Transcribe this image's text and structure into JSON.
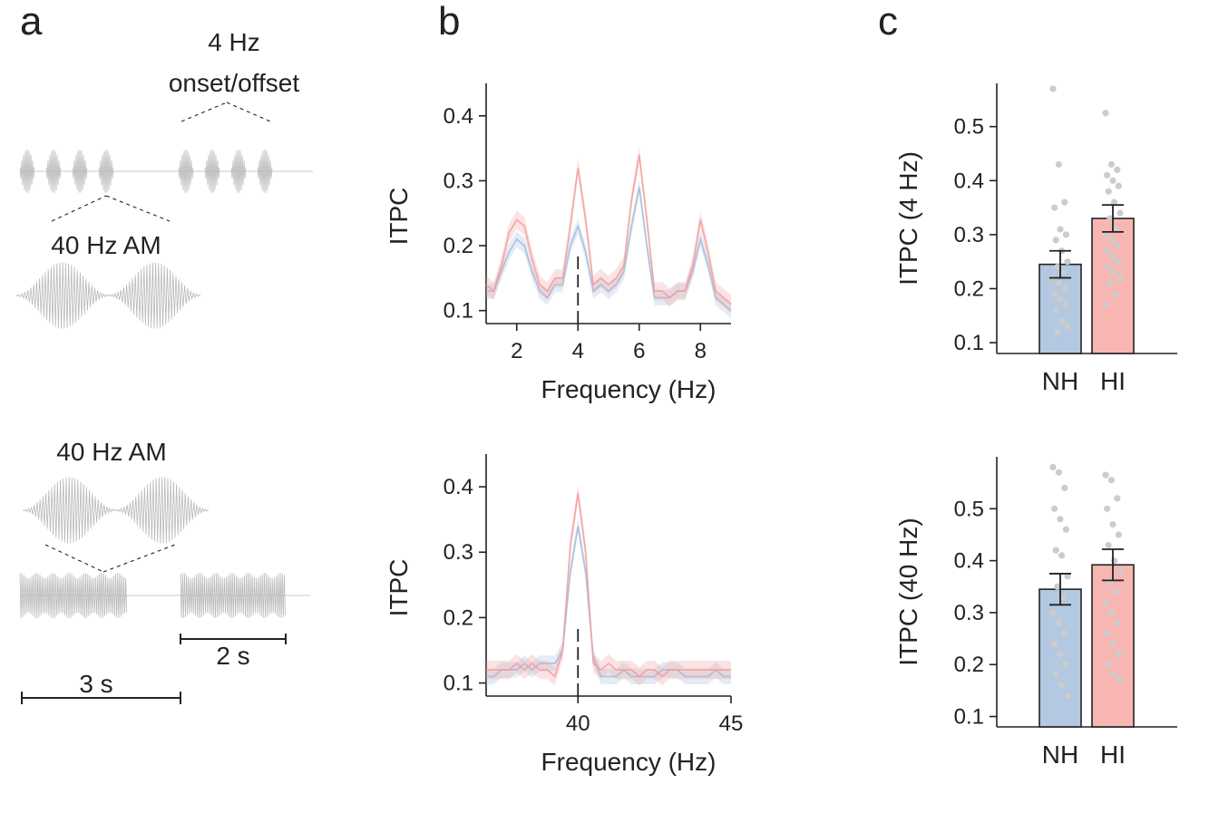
{
  "panels": {
    "a": "a",
    "b": "b",
    "c": "c"
  },
  "schematic": {
    "top_label_line1": "4 Hz",
    "top_label_line2": "onset/offset",
    "am_label_top": "40 Hz AM",
    "am_label_bottom": "40 Hz AM",
    "scale_2s": "2 s",
    "scale_3s": "3 s"
  },
  "colors": {
    "NH": "#9fbbdc",
    "HI": "#f29c99",
    "NH_bar": "#b3c8e1",
    "HI_bar": "#f8b6b2",
    "dots": "#cccccc",
    "waveform": "#b8b8b8"
  },
  "chart_data": [
    {
      "id": "b-top",
      "type": "line",
      "xlabel": "Frequency (Hz)",
      "ylabel": "ITPC",
      "xlim": [
        1,
        9
      ],
      "ylim": [
        0.08,
        0.45
      ],
      "xticks": [
        2,
        4,
        6,
        8
      ],
      "yticks": [
        0.1,
        0.2,
        0.3,
        0.4
      ],
      "marker_x": 4,
      "x": [
        1,
        1.25,
        1.5,
        1.75,
        2,
        2.25,
        2.5,
        2.75,
        3,
        3.25,
        3.5,
        3.75,
        4,
        4.25,
        4.5,
        4.75,
        5,
        5.25,
        5.5,
        5.75,
        6,
        6.25,
        6.5,
        6.75,
        7,
        7.25,
        7.5,
        7.75,
        8,
        8.25,
        8.5,
        8.75,
        9
      ],
      "series": [
        {
          "name": "NH",
          "values": [
            0.13,
            0.13,
            0.16,
            0.19,
            0.21,
            0.2,
            0.16,
            0.13,
            0.12,
            0.14,
            0.14,
            0.2,
            0.23,
            0.19,
            0.13,
            0.14,
            0.13,
            0.14,
            0.16,
            0.23,
            0.29,
            0.2,
            0.12,
            0.12,
            0.12,
            0.13,
            0.13,
            0.16,
            0.21,
            0.17,
            0.12,
            0.11,
            0.1
          ],
          "band": 0.012
        },
        {
          "name": "HI",
          "values": [
            0.14,
            0.13,
            0.17,
            0.22,
            0.24,
            0.23,
            0.18,
            0.14,
            0.13,
            0.15,
            0.15,
            0.23,
            0.32,
            0.24,
            0.14,
            0.15,
            0.14,
            0.15,
            0.17,
            0.27,
            0.34,
            0.24,
            0.13,
            0.13,
            0.12,
            0.13,
            0.13,
            0.17,
            0.24,
            0.19,
            0.13,
            0.12,
            0.11
          ],
          "band": 0.014
        }
      ]
    },
    {
      "id": "b-bottom",
      "type": "line",
      "xlabel": "Frequency (Hz)",
      "ylabel": "ITPC",
      "xlim": [
        37,
        45
      ],
      "ylim": [
        0.08,
        0.45
      ],
      "xticks": [
        40,
        45
      ],
      "yticks": [
        0.1,
        0.2,
        0.3,
        0.4
      ],
      "marker_x": 40,
      "x": [
        37,
        37.25,
        37.5,
        37.75,
        38,
        38.25,
        38.5,
        38.75,
        39,
        39.25,
        39.5,
        39.75,
        40,
        40.25,
        40.5,
        40.75,
        41,
        41.25,
        41.5,
        41.75,
        42,
        42.25,
        42.5,
        42.75,
        43,
        43.25,
        43.5,
        43.75,
        44,
        44.25,
        44.5,
        44.75,
        45
      ],
      "series": [
        {
          "name": "NH",
          "values": [
            0.11,
            0.11,
            0.12,
            0.12,
            0.12,
            0.13,
            0.12,
            0.13,
            0.13,
            0.13,
            0.15,
            0.27,
            0.34,
            0.27,
            0.14,
            0.11,
            0.11,
            0.11,
            0.12,
            0.11,
            0.11,
            0.11,
            0.11,
            0.12,
            0.12,
            0.12,
            0.11,
            0.11,
            0.11,
            0.11,
            0.12,
            0.11,
            0.11
          ],
          "band": 0.012
        },
        {
          "name": "HI",
          "values": [
            0.12,
            0.12,
            0.12,
            0.12,
            0.13,
            0.12,
            0.13,
            0.12,
            0.12,
            0.11,
            0.15,
            0.31,
            0.39,
            0.3,
            0.13,
            0.12,
            0.13,
            0.12,
            0.12,
            0.12,
            0.11,
            0.12,
            0.12,
            0.11,
            0.12,
            0.12,
            0.12,
            0.12,
            0.12,
            0.12,
            0.12,
            0.12,
            0.12
          ],
          "band": 0.014
        }
      ]
    },
    {
      "id": "c-top",
      "type": "bar",
      "ylabel": "ITPC (4 Hz)",
      "ylim": [
        0.08,
        0.58
      ],
      "yticks": [
        0.1,
        0.2,
        0.3,
        0.4,
        0.5
      ],
      "categories": [
        "NH",
        "HI"
      ],
      "values": [
        0.245,
        0.33
      ],
      "errors": [
        0.025,
        0.025
      ],
      "points": [
        [
          0.57,
          0.43,
          0.36,
          0.35,
          0.31,
          0.3,
          0.29,
          0.27,
          0.25,
          0.24,
          0.23,
          0.22,
          0.21,
          0.2,
          0.19,
          0.18,
          0.17,
          0.16,
          0.14,
          0.13,
          0.12
        ],
        [
          0.525,
          0.43,
          0.42,
          0.41,
          0.4,
          0.39,
          0.38,
          0.36,
          0.34,
          0.33,
          0.31,
          0.3,
          0.29,
          0.28,
          0.27,
          0.26,
          0.25,
          0.24,
          0.23,
          0.22,
          0.21,
          0.19,
          0.17
        ]
      ]
    },
    {
      "id": "c-bottom",
      "type": "bar",
      "ylabel": "ITPC (40 Hz)",
      "ylim": [
        0.08,
        0.6
      ],
      "yticks": [
        0.1,
        0.2,
        0.3,
        0.4,
        0.5
      ],
      "categories": [
        "NH",
        "HI"
      ],
      "values": [
        0.345,
        0.392
      ],
      "errors": [
        0.03,
        0.03
      ],
      "points": [
        [
          0.58,
          0.57,
          0.54,
          0.5,
          0.48,
          0.46,
          0.42,
          0.41,
          0.37,
          0.35,
          0.33,
          0.3,
          0.28,
          0.26,
          0.24,
          0.22,
          0.2,
          0.18,
          0.16,
          0.14
        ],
        [
          0.565,
          0.555,
          0.52,
          0.5,
          0.47,
          0.45,
          0.43,
          0.4,
          0.38,
          0.36,
          0.34,
          0.32,
          0.3,
          0.28,
          0.26,
          0.24,
          0.22,
          0.2,
          0.18,
          0.17
        ]
      ]
    }
  ]
}
